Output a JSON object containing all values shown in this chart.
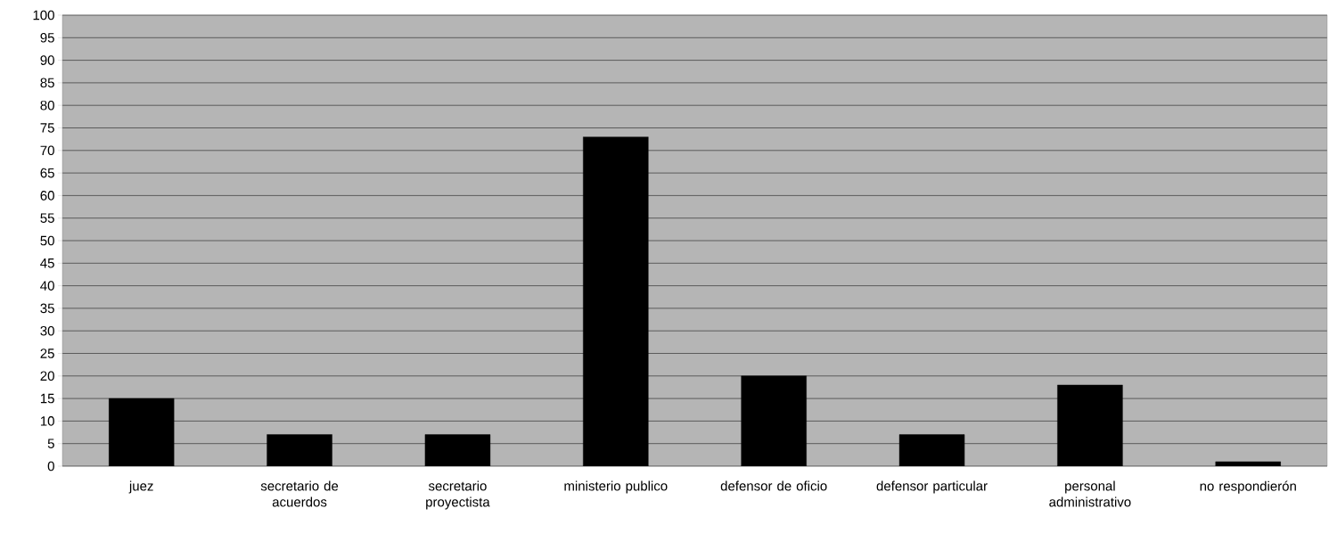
{
  "chart_data": {
    "type": "bar",
    "categories": [
      "juez",
      "secretario de acuerdos",
      "secretario proyectista",
      "ministerio publico",
      "defensor de oficio",
      "defensor particular",
      "personal administrativo",
      "no respondierón"
    ],
    "values": [
      15,
      7,
      7,
      73,
      20,
      7,
      18,
      1
    ],
    "color": "#000000",
    "ylim": [
      0,
      100
    ],
    "yticks": [
      0,
      5,
      10,
      15,
      20,
      25,
      30,
      35,
      40,
      45,
      50,
      55,
      60,
      65,
      70,
      75,
      80,
      85,
      90,
      95,
      100
    ],
    "grid": "y"
  }
}
